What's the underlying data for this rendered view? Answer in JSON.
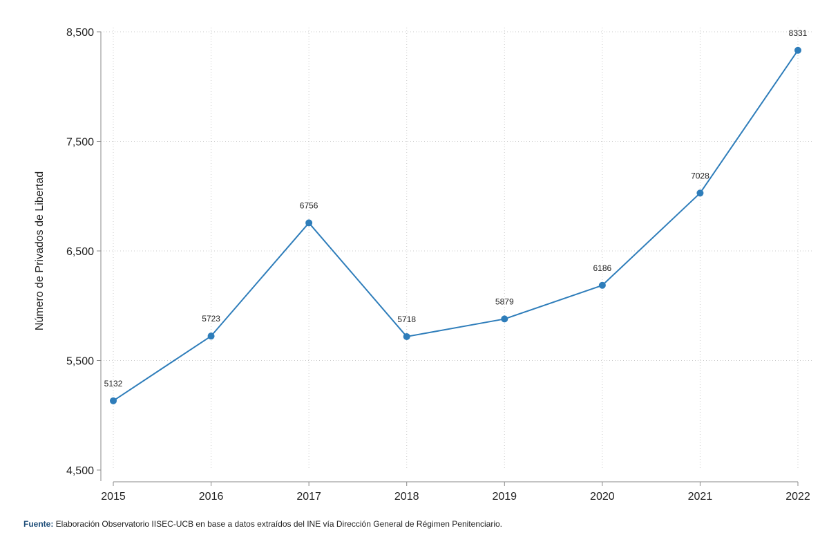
{
  "chart_data": {
    "type": "line",
    "x": [
      "2015",
      "2016",
      "2017",
      "2018",
      "2019",
      "2020",
      "2021",
      "2022"
    ],
    "series": [
      {
        "values": [
          5132,
          5723,
          6756,
          5718,
          5879,
          6186,
          7028,
          8331
        ]
      }
    ],
    "data_labels": [
      "5132",
      "5723",
      "6756",
      "5718",
      "5879",
      "6186",
      "7028",
      "8331"
    ],
    "ylabel": "Número de Privados de Libertad",
    "ylim": [
      4500,
      8500
    ],
    "yticks": [
      4500,
      5500,
      6500,
      7500,
      8500
    ],
    "ytick_labels": [
      "4,500",
      "5,500",
      "6,500",
      "7,500",
      "8,500"
    ],
    "grid": true,
    "line_color": "#2e7dba",
    "grid_color": "#c8c8c8"
  },
  "source": {
    "label": "Fuente:",
    "text": " Elaboración Observatorio IISEC-UCB en base a datos  extraídos del INE vía Dirección General de Régimen Penitenciario."
  }
}
